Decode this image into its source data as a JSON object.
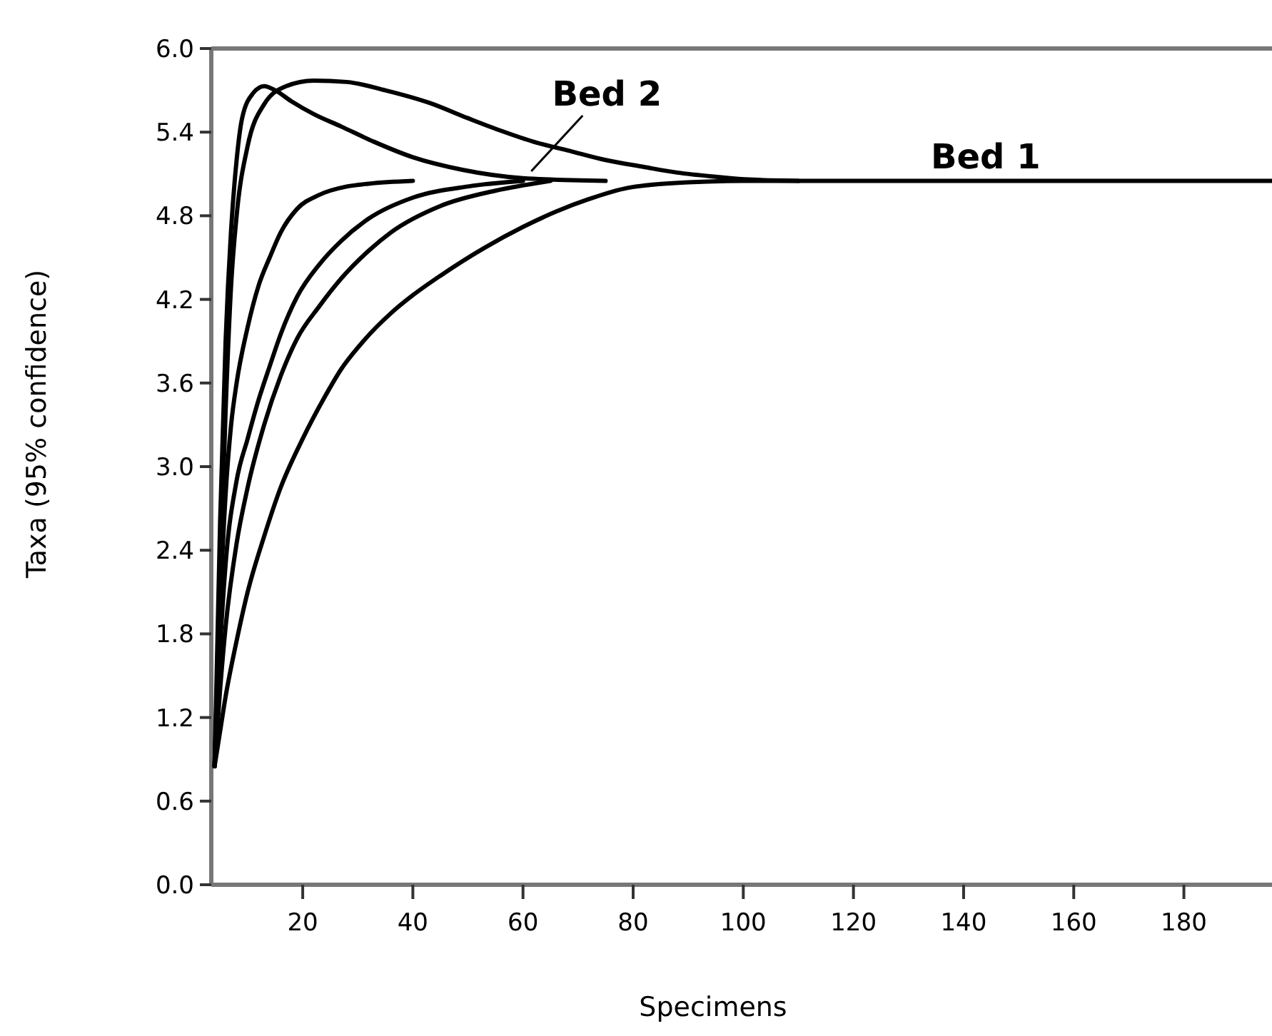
{
  "chart_data": {
    "type": "line",
    "xlabel": "Specimens",
    "ylabel": "Taxa (95% confidence)",
    "xlim": [
      3.4,
      196
    ],
    "ylim": [
      0,
      6
    ],
    "xticks": [
      20,
      40,
      60,
      80,
      100,
      120,
      140,
      160,
      180
    ],
    "yticks": [
      {
        "value": 0,
        "label": "0.0"
      },
      {
        "value": 0.6,
        "label": "0.6"
      },
      {
        "value": 1.2,
        "label": "1.2"
      },
      {
        "value": 1.8,
        "label": "1.8"
      },
      {
        "value": 2.4,
        "label": "2.4"
      },
      {
        "value": 3,
        "label": "3.0"
      },
      {
        "value": 3.6,
        "label": "3.6"
      },
      {
        "value": 4.2,
        "label": "4.2"
      },
      {
        "value": 4.8,
        "label": "4.8"
      },
      {
        "value": 5.4,
        "label": "5.4"
      },
      {
        "value": 6,
        "label": "6.0"
      }
    ],
    "grid": false,
    "marker": "none",
    "line_style": "solid",
    "annotations": [
      {
        "text": "Bed 2",
        "x": 61.5,
        "y": 5.12
      },
      {
        "text": "Bed 1",
        "x": 144,
        "y": 5.05
      }
    ],
    "series": [
      {
        "color": "#000000",
        "x": [
          4,
          5,
          6,
          7,
          8,
          9,
          11,
          13,
          15,
          18,
          22,
          27,
          33,
          40,
          49,
          60,
          75
        ],
        "values": [
          0.85,
          2.6,
          3.9,
          4.7,
          5.2,
          5.5,
          5.68,
          5.73,
          5.7,
          5.62,
          5.53,
          5.44,
          5.33,
          5.22,
          5.13,
          5.07,
          5.05
        ]
      },
      {
        "color": "#000000",
        "x": [
          4,
          5,
          6,
          7,
          8,
          10,
          13,
          17,
          22,
          28,
          35,
          43,
          50,
          56,
          62,
          69,
          75,
          82,
          88,
          95,
          101,
          110
        ],
        "values": [
          0.85,
          2.2,
          3.4,
          4.3,
          4.8,
          5.3,
          5.6,
          5.73,
          5.77,
          5.76,
          5.7,
          5.61,
          5.5,
          5.41,
          5.33,
          5.26,
          5.2,
          5.15,
          5.11,
          5.08,
          5.06,
          5.05
        ]
      },
      {
        "color": "#000000",
        "x": [
          4,
          5,
          6,
          7,
          8,
          10,
          12,
          14,
          16,
          19,
          23,
          28,
          32,
          40
        ],
        "values": [
          0.85,
          2.0,
          2.8,
          3.3,
          3.6,
          4.0,
          4.3,
          4.5,
          4.68,
          4.85,
          4.95,
          5.01,
          5.03,
          5.05
        ]
      },
      {
        "color": "#000000",
        "x": [
          4,
          5,
          6,
          8,
          10,
          12,
          14,
          16,
          19,
          23,
          27,
          32,
          40,
          50,
          60
        ],
        "values": [
          0.85,
          1.7,
          2.3,
          2.9,
          3.2,
          3.48,
          3.72,
          3.95,
          4.22,
          4.45,
          4.62,
          4.78,
          4.93,
          5.01,
          5.05
        ]
      },
      {
        "color": "#000000",
        "x": [
          4,
          5,
          6,
          8,
          10,
          13,
          16,
          19,
          23,
          27,
          32,
          36,
          45,
          55,
          65
        ],
        "values": [
          0.85,
          1.4,
          1.85,
          2.45,
          2.85,
          3.3,
          3.65,
          3.92,
          4.15,
          4.35,
          4.55,
          4.68,
          4.87,
          4.98,
          5.05
        ]
      },
      {
        "color": "#000000",
        "x": [
          4,
          5,
          6,
          8,
          10,
          13,
          16,
          20,
          24,
          27,
          31,
          36,
          40,
          45,
          53,
          60,
          66,
          72,
          79,
          90,
          100,
          196
        ],
        "values": [
          0.85,
          1.1,
          1.35,
          1.75,
          2.1,
          2.5,
          2.85,
          3.2,
          3.5,
          3.7,
          3.9,
          4.1,
          4.23,
          4.37,
          4.57,
          4.72,
          4.83,
          4.92,
          5.0,
          5.04,
          5.05,
          5.05
        ]
      }
    ]
  }
}
